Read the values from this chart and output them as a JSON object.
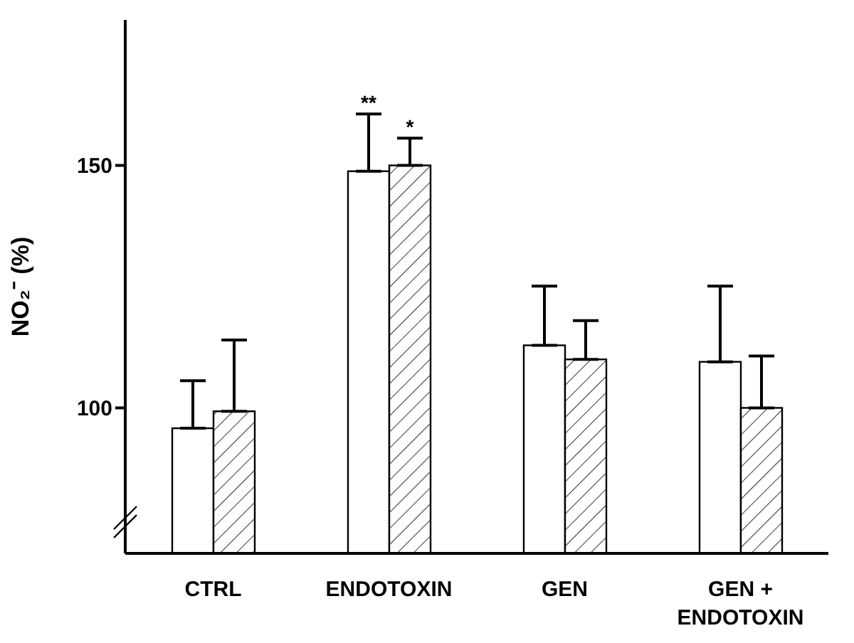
{
  "chart_data": {
    "type": "bar",
    "ylabel": "NO₂⁻ (%)",
    "categories": [
      "CTRL",
      "ENDOTOXIN",
      "GEN",
      "GEN + ENDOTOXIN"
    ],
    "series": [
      {
        "color": "#ffffff",
        "values": [
          95.8,
          148.8,
          112.9,
          109.5
        ],
        "errors": [
          [
            95.8,
            105.6
          ],
          [
            148.8,
            160.6
          ],
          [
            112.9,
            125.1
          ],
          [
            109.5,
            125.1
          ]
        ],
        "value_labels": [
          null,
          "**",
          null,
          null
        ]
      },
      {
        "color": "#ffffff",
        "values": [
          99.3,
          150,
          110,
          100
        ],
        "errors": [
          [
            99.3,
            114
          ],
          [
            150,
            155.6
          ],
          [
            110,
            118
          ],
          [
            100,
            110.7
          ]
        ],
        "value_labels": [
          null,
          "*",
          null,
          null
        ]
      }
    ],
    "ylim": [
      70,
      180
    ],
    "yticks": [
      100,
      150
    ]
  }
}
